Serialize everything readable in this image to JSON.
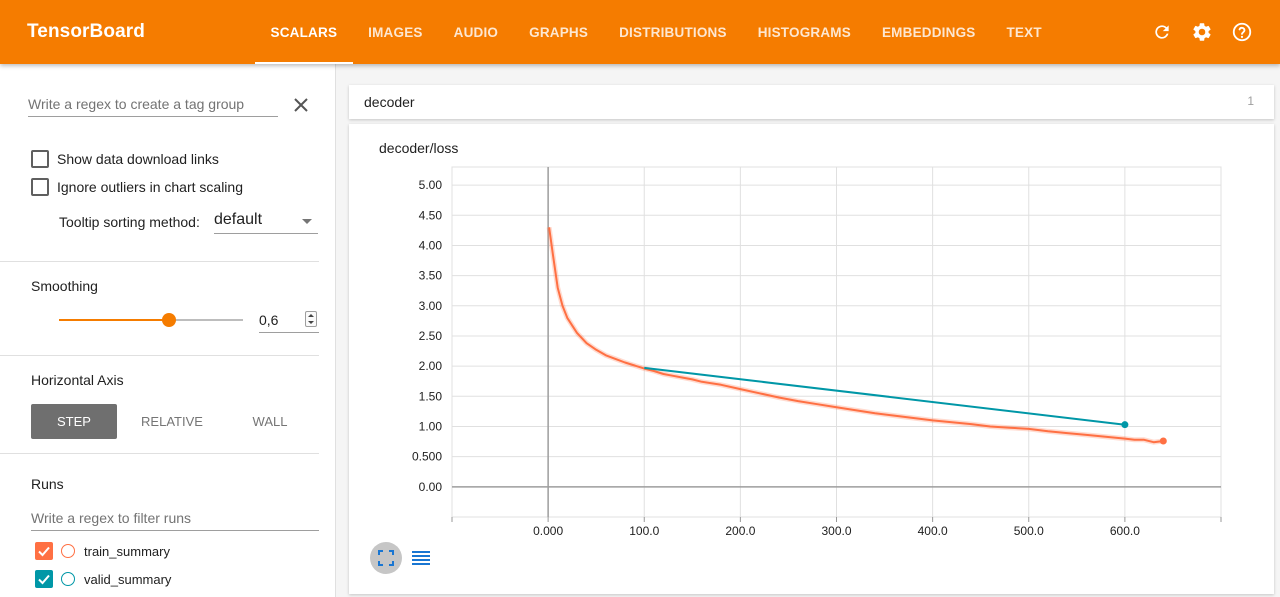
{
  "app": {
    "title": "TensorBoard"
  },
  "tabs": [
    {
      "label": "SCALARS",
      "active": true
    },
    {
      "label": "IMAGES",
      "active": false
    },
    {
      "label": "AUDIO",
      "active": false
    },
    {
      "label": "GRAPHS",
      "active": false
    },
    {
      "label": "DISTRIBUTIONS",
      "active": false
    },
    {
      "label": "HISTOGRAMS",
      "active": false
    },
    {
      "label": "EMBEDDINGS",
      "active": false
    },
    {
      "label": "TEXT",
      "active": false
    }
  ],
  "header_icons": [
    "refresh-icon",
    "settings-icon",
    "help-icon"
  ],
  "sidebar": {
    "tag_filter": {
      "placeholder": "Write a regex to create a tag group",
      "value": ""
    },
    "show_download_links": {
      "label": "Show data download links",
      "checked": false
    },
    "ignore_outliers": {
      "label": "Ignore outliers in chart scaling",
      "checked": false
    },
    "tooltip_sorting": {
      "label": "Tooltip sorting method:",
      "value": "default"
    },
    "smoothing": {
      "title": "Smoothing",
      "value": "0,6",
      "fraction": 0.6
    },
    "horizontal_axis": {
      "title": "Horizontal Axis",
      "options": [
        {
          "label": "STEP",
          "active": true
        },
        {
          "label": "RELATIVE",
          "active": false
        },
        {
          "label": "WALL",
          "active": false
        }
      ]
    },
    "runs": {
      "title": "Runs",
      "filter_placeholder": "Write a regex to filter runs",
      "items": [
        {
          "name": "train_summary",
          "checked": true,
          "color": "#ff7043"
        },
        {
          "name": "valid_summary",
          "checked": true,
          "color": "#0097a7"
        }
      ]
    }
  },
  "main": {
    "group": {
      "name": "decoder",
      "count": "1"
    }
  },
  "chart_data": {
    "type": "line",
    "title": "decoder/loss",
    "xlim": [
      -100,
      700
    ],
    "ylim": [
      -0.5,
      5.3
    ],
    "x_ticks": [
      "0.000",
      "100.0",
      "200.0",
      "300.0",
      "400.0",
      "500.0",
      "600.0"
    ],
    "x_tick_values": [
      0,
      100,
      200,
      300,
      400,
      500,
      600
    ],
    "y_ticks": [
      "0.00",
      "0.500",
      "1.00",
      "1.50",
      "2.00",
      "2.50",
      "3.00",
      "3.50",
      "4.00",
      "4.50",
      "5.00"
    ],
    "y_tick_values": [
      0,
      0.5,
      1,
      1.5,
      2,
      2.5,
      3,
      3.5,
      4,
      4.5,
      5
    ],
    "grid": true,
    "series": [
      {
        "name": "train_summary",
        "color": "#ff7043",
        "x": [
          1,
          5,
          10,
          15,
          20,
          30,
          40,
          50,
          60,
          70,
          80,
          90,
          100,
          110,
          120,
          130,
          140,
          150,
          160,
          180,
          200,
          220,
          240,
          260,
          280,
          300,
          320,
          340,
          360,
          380,
          400,
          420,
          440,
          460,
          480,
          500,
          520,
          540,
          560,
          580,
          600,
          610,
          620,
          630,
          640
        ],
        "values": [
          4.3,
          3.85,
          3.3,
          3.0,
          2.8,
          2.55,
          2.38,
          2.27,
          2.18,
          2.12,
          2.06,
          2.01,
          1.96,
          1.92,
          1.87,
          1.84,
          1.81,
          1.78,
          1.74,
          1.69,
          1.62,
          1.55,
          1.48,
          1.42,
          1.37,
          1.32,
          1.27,
          1.22,
          1.18,
          1.14,
          1.1,
          1.07,
          1.04,
          1.0,
          0.98,
          0.96,
          0.92,
          0.89,
          0.86,
          0.83,
          0.8,
          0.78,
          0.78,
          0.74,
          0.76
        ]
      },
      {
        "name": "valid_summary",
        "color": "#0097a7",
        "x": [
          100,
          600
        ],
        "values": [
          1.97,
          1.03
        ]
      }
    ]
  }
}
